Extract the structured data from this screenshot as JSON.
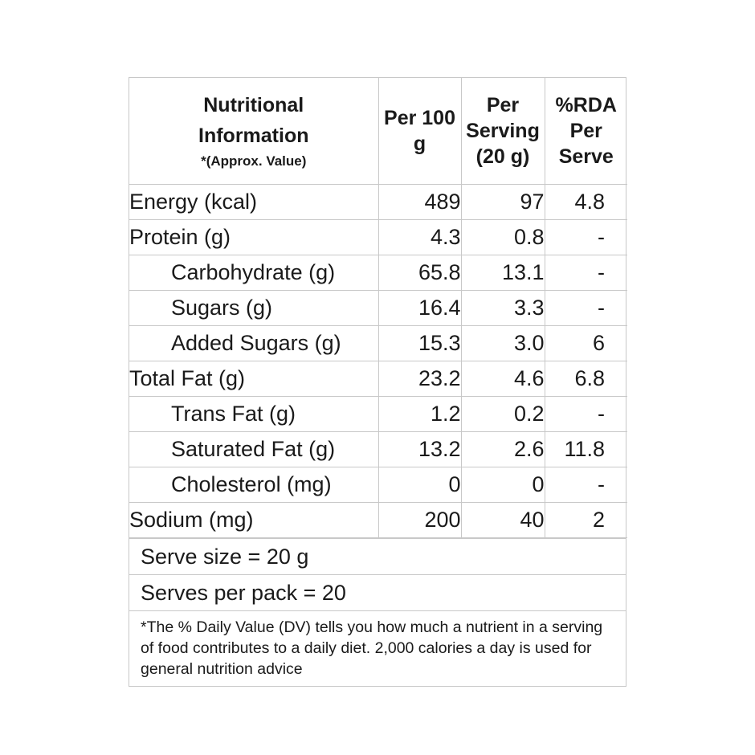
{
  "header": {
    "title_line1": "Nutritional",
    "title_line2": "Information",
    "note": "*(Approx. Value)",
    "col_per100": "Per 100 g",
    "col_perserving": "Per Serving (20 g)",
    "col_rda": "%RDA Per Serve"
  },
  "rows": [
    {
      "nutrient": "Energy (kcal)",
      "per100": "489",
      "serving": "97",
      "rda": "4.8"
    },
    {
      "nutrient": "Protein (g)",
      "per100": "4.3",
      "serving": "0.8",
      "rda": "-"
    },
    {
      "nutrient": "Carbohydrate (g)",
      "per100": "65.8",
      "serving": "13.1",
      "rda": "-"
    },
    {
      "nutrient": "Sugars (g)",
      "per100": "16.4",
      "serving": "3.3",
      "rda": "-"
    },
    {
      "nutrient": "Added Sugars (g)",
      "per100": "15.3",
      "serving": "3.0",
      "rda": "6"
    },
    {
      "nutrient": "Total Fat (g)",
      "per100": "23.2",
      "serving": "4.6",
      "rda": "6.8"
    },
    {
      "nutrient": "Trans Fat (g)",
      "per100": "1.2",
      "serving": "0.2",
      "rda": "-"
    },
    {
      "nutrient": "Saturated Fat (g)",
      "per100": "13.2",
      "serving": "2.6",
      "rda": "11.8"
    },
    {
      "nutrient": "Cholesterol (mg)",
      "per100": "0",
      "serving": "0",
      "rda": "-"
    },
    {
      "nutrient": "Sodium (mg)",
      "per100": "200",
      "serving": "40",
      "rda": "2"
    }
  ],
  "serve_size": "Serve size = 20 g",
  "serves_per_pack": "Serves per pack = 20",
  "footnote": "*The % Daily Value (DV) tells you how much a nutrient in a serving of food contributes to a daily diet. 2,000 calories a day is used for general nutrition advice"
}
